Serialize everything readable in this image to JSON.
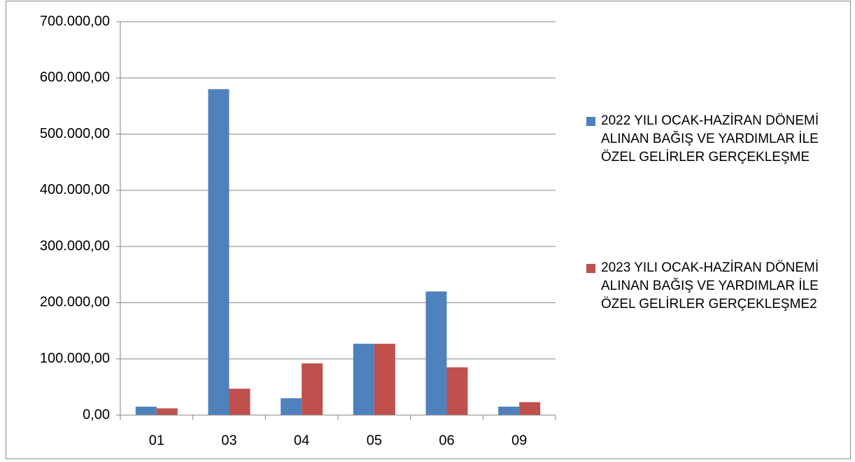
{
  "chart_data": {
    "type": "bar",
    "categories": [
      "01",
      "03",
      "04",
      "05",
      "06",
      "09"
    ],
    "series": [
      {
        "name": "2022 YILI OCAK-HAZİRAN DÖNEMİ ALINAN BAĞIŞ VE YARDIMLAR İLE ÖZEL GELİRLER GERÇEKLEŞME",
        "color": "#4f81bd",
        "values": [
          15000,
          580000,
          30000,
          127000,
          220000,
          15000
        ]
      },
      {
        "name": "2023 YILI OCAK-HAZİRAN DÖNEMİ ALINAN BAĞIŞ VE YARDIMLAR İLE ÖZEL GELİRLER GERÇEKLEŞME2",
        "color": "#c0504d",
        "values": [
          12000,
          47000,
          92000,
          127000,
          85000,
          23000
        ]
      }
    ],
    "ylim": [
      0,
      700000
    ],
    "yticks": [
      {
        "value": 0,
        "label": "0,00"
      },
      {
        "value": 100000,
        "label": "100.000,00"
      },
      {
        "value": 200000,
        "label": "200.000,00"
      },
      {
        "value": 300000,
        "label": "300.000,00"
      },
      {
        "value": 400000,
        "label": "400.000,00"
      },
      {
        "value": 500000,
        "label": "500.000,00"
      },
      {
        "value": 600000,
        "label": "600.000,00"
      },
      {
        "value": 700000,
        "label": "700.000,00"
      }
    ],
    "grid": true,
    "legend": "right"
  }
}
